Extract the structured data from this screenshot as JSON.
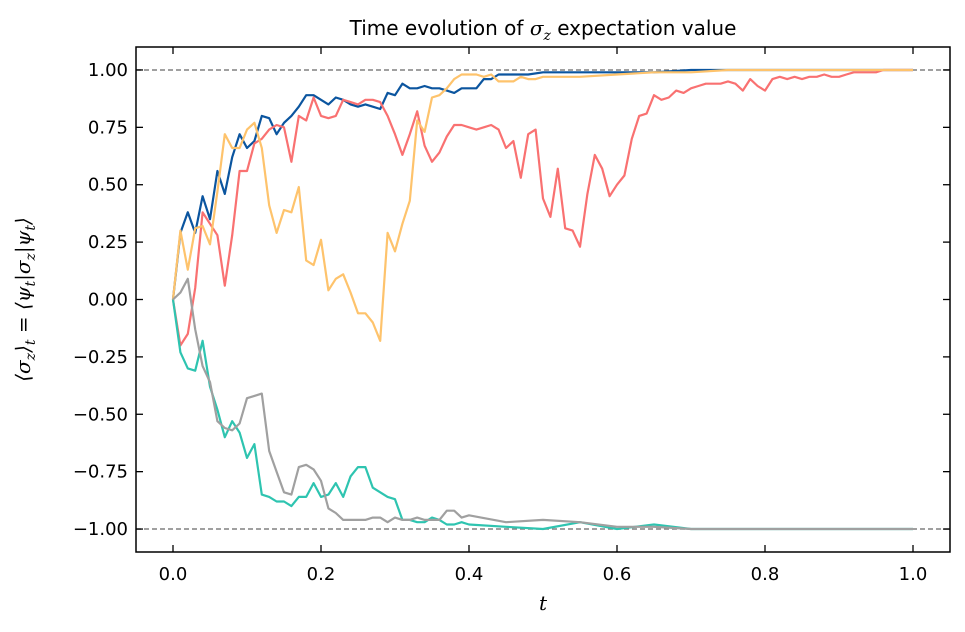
{
  "chart_data": {
    "type": "line",
    "title": "Time evolution of σ_z expectation value",
    "title_parts": [
      "Time evolution of ",
      "σ",
      "z",
      " expectation value"
    ],
    "xlabel": "t",
    "ylabel": "⟨σ_z⟩_t = ⟨ψ_t|σ_z|ψ_t⟩",
    "ylabel_parts": [
      "⟨σ",
      "z",
      "⟩",
      "t",
      " = ⟨ψ",
      "t",
      "|σ",
      "z",
      "|ψ",
      "t",
      "⟩"
    ],
    "xlim": [
      -0.05,
      1.05
    ],
    "ylim": [
      -1.1,
      1.1
    ],
    "xticks": [
      0.0,
      0.2,
      0.4,
      0.6,
      0.8,
      1.0
    ],
    "xtick_labels": [
      "0.0",
      "0.2",
      "0.4",
      "0.6",
      "0.8",
      "1.0"
    ],
    "yticks": [
      -1.0,
      -0.75,
      -0.5,
      -0.25,
      0.0,
      0.25,
      0.5,
      0.75,
      1.0
    ],
    "ytick_labels": [
      "−1.00",
      "−0.75",
      "−0.50",
      "−0.25",
      "0.00",
      "0.25",
      "0.50",
      "0.75",
      "1.00"
    ],
    "reference_lines": [
      1.0,
      -1.0
    ],
    "reference_line_color": "#808080",
    "grid": false,
    "legend": "none",
    "series": [
      {
        "color": "#0b559f",
        "x": [
          0,
          0.01,
          0.02,
          0.03,
          0.04,
          0.05,
          0.06,
          0.07,
          0.08,
          0.09,
          0.1,
          0.11,
          0.12,
          0.13,
          0.14,
          0.15,
          0.16,
          0.17,
          0.18,
          0.19,
          0.2,
          0.21,
          0.22,
          0.23,
          0.24,
          0.25,
          0.26,
          0.27,
          0.28,
          0.29,
          0.3,
          0.31,
          0.32,
          0.33,
          0.34,
          0.35,
          0.36,
          0.37,
          0.38,
          0.39,
          0.4,
          0.41,
          0.42,
          0.43,
          0.44,
          0.45,
          0.46,
          0.47,
          0.48,
          0.5,
          0.55,
          0.6,
          0.65,
          0.7,
          0.75,
          0.8,
          0.85,
          0.9,
          0.95,
          1.0
        ],
        "y": [
          0,
          0.29,
          0.38,
          0.29,
          0.45,
          0.35,
          0.56,
          0.46,
          0.62,
          0.72,
          0.66,
          0.69,
          0.8,
          0.79,
          0.72,
          0.77,
          0.8,
          0.84,
          0.89,
          0.89,
          0.87,
          0.85,
          0.88,
          0.87,
          0.85,
          0.84,
          0.85,
          0.84,
          0.83,
          0.9,
          0.89,
          0.94,
          0.92,
          0.92,
          0.93,
          0.92,
          0.92,
          0.91,
          0.9,
          0.92,
          0.92,
          0.92,
          0.96,
          0.96,
          0.98,
          0.98,
          0.98,
          0.98,
          0.98,
          0.99,
          0.99,
          0.99,
          0.99,
          1.0,
          1.0,
          1.0,
          1.0,
          1.0,
          1.0,
          1.0
        ]
      },
      {
        "color": "#f97171",
        "x": [
          0,
          0.01,
          0.02,
          0.03,
          0.04,
          0.05,
          0.06,
          0.07,
          0.08,
          0.09,
          0.1,
          0.11,
          0.12,
          0.13,
          0.14,
          0.15,
          0.16,
          0.17,
          0.18,
          0.19,
          0.2,
          0.21,
          0.22,
          0.23,
          0.24,
          0.25,
          0.26,
          0.27,
          0.28,
          0.29,
          0.3,
          0.31,
          0.32,
          0.33,
          0.34,
          0.35,
          0.36,
          0.37,
          0.38,
          0.39,
          0.4,
          0.41,
          0.42,
          0.43,
          0.44,
          0.45,
          0.46,
          0.47,
          0.48,
          0.49,
          0.5,
          0.51,
          0.52,
          0.53,
          0.54,
          0.55,
          0.56,
          0.57,
          0.58,
          0.59,
          0.6,
          0.61,
          0.62,
          0.63,
          0.64,
          0.65,
          0.66,
          0.67,
          0.68,
          0.69,
          0.7,
          0.71,
          0.72,
          0.73,
          0.74,
          0.75,
          0.76,
          0.77,
          0.78,
          0.79,
          0.8,
          0.81,
          0.82,
          0.83,
          0.84,
          0.85,
          0.86,
          0.87,
          0.88,
          0.89,
          0.9,
          0.91,
          0.92,
          0.93,
          0.94,
          0.95,
          0.96,
          0.97,
          0.98,
          0.99,
          1.0
        ],
        "y": [
          0,
          -0.2,
          -0.15,
          0.05,
          0.38,
          0.33,
          0.28,
          0.06,
          0.28,
          0.56,
          0.56,
          0.68,
          0.7,
          0.74,
          0.76,
          0.75,
          0.6,
          0.8,
          0.78,
          0.88,
          0.8,
          0.79,
          0.8,
          0.87,
          0.86,
          0.85,
          0.87,
          0.87,
          0.86,
          0.8,
          0.72,
          0.63,
          0.72,
          0.82,
          0.67,
          0.6,
          0.64,
          0.71,
          0.76,
          0.76,
          0.75,
          0.74,
          0.75,
          0.76,
          0.74,
          0.66,
          0.69,
          0.53,
          0.72,
          0.74,
          0.44,
          0.36,
          0.57,
          0.31,
          0.3,
          0.23,
          0.46,
          0.63,
          0.57,
          0.45,
          0.5,
          0.54,
          0.7,
          0.8,
          0.81,
          0.89,
          0.87,
          0.88,
          0.91,
          0.9,
          0.92,
          0.93,
          0.94,
          0.94,
          0.94,
          0.95,
          0.94,
          0.91,
          0.96,
          0.93,
          0.91,
          0.96,
          0.97,
          0.96,
          0.97,
          0.96,
          0.97,
          0.97,
          0.98,
          0.97,
          0.97,
          0.98,
          0.99,
          0.99,
          0.99,
          0.99,
          1.0,
          1.0,
          1.0,
          1.0,
          1.0
        ]
      },
      {
        "color": "#fec36c",
        "x": [
          0,
          0.01,
          0.02,
          0.03,
          0.04,
          0.05,
          0.06,
          0.07,
          0.08,
          0.09,
          0.1,
          0.11,
          0.12,
          0.13,
          0.14,
          0.15,
          0.16,
          0.17,
          0.18,
          0.19,
          0.2,
          0.21,
          0.22,
          0.23,
          0.24,
          0.25,
          0.26,
          0.27,
          0.28,
          0.29,
          0.3,
          0.31,
          0.32,
          0.33,
          0.34,
          0.35,
          0.36,
          0.37,
          0.38,
          0.39,
          0.4,
          0.41,
          0.42,
          0.43,
          0.44,
          0.45,
          0.46,
          0.47,
          0.48,
          0.49,
          0.5,
          0.55,
          0.6,
          0.65,
          0.7,
          0.75,
          0.8,
          0.85,
          0.9,
          0.95,
          1.0
        ],
        "y": [
          0,
          0.3,
          0.13,
          0.31,
          0.32,
          0.24,
          0.47,
          0.72,
          0.66,
          0.66,
          0.74,
          0.77,
          0.66,
          0.41,
          0.29,
          0.39,
          0.38,
          0.49,
          0.17,
          0.15,
          0.26,
          0.04,
          0.09,
          0.11,
          0.03,
          -0.06,
          -0.06,
          -0.1,
          -0.18,
          0.29,
          0.21,
          0.33,
          0.43,
          0.78,
          0.73,
          0.88,
          0.89,
          0.92,
          0.96,
          0.98,
          0.98,
          0.98,
          0.97,
          0.98,
          0.95,
          0.95,
          0.95,
          0.97,
          0.96,
          0.96,
          0.97,
          0.97,
          0.98,
          0.99,
          0.99,
          1.0,
          1.0,
          1.0,
          1.0,
          1.0,
          1.0
        ]
      },
      {
        "color": "#2ec4b0",
        "x": [
          0,
          0.01,
          0.02,
          0.03,
          0.04,
          0.05,
          0.06,
          0.07,
          0.08,
          0.09,
          0.1,
          0.11,
          0.12,
          0.13,
          0.14,
          0.15,
          0.16,
          0.17,
          0.18,
          0.19,
          0.2,
          0.21,
          0.22,
          0.23,
          0.24,
          0.25,
          0.26,
          0.27,
          0.28,
          0.29,
          0.3,
          0.31,
          0.32,
          0.33,
          0.34,
          0.35,
          0.36,
          0.37,
          0.38,
          0.39,
          0.4,
          0.45,
          0.5,
          0.55,
          0.6,
          0.65,
          0.7,
          0.75,
          0.8,
          0.85,
          0.9,
          0.95,
          1.0
        ],
        "y": [
          0,
          -0.23,
          -0.3,
          -0.31,
          -0.18,
          -0.38,
          -0.48,
          -0.6,
          -0.53,
          -0.58,
          -0.69,
          -0.63,
          -0.85,
          -0.86,
          -0.88,
          -0.88,
          -0.9,
          -0.86,
          -0.86,
          -0.8,
          -0.86,
          -0.85,
          -0.8,
          -0.86,
          -0.77,
          -0.73,
          -0.73,
          -0.82,
          -0.84,
          -0.86,
          -0.87,
          -0.96,
          -0.96,
          -0.97,
          -0.97,
          -0.95,
          -0.96,
          -0.98,
          -0.98,
          -0.97,
          -0.98,
          -0.99,
          -1.0,
          -0.97,
          -1.0,
          -0.98,
          -1.0,
          -1.0,
          -1.0,
          -1.0,
          -1.0,
          -1.0,
          -1.0
        ]
      },
      {
        "color": "#a0a0a0",
        "x": [
          0,
          0.01,
          0.02,
          0.03,
          0.04,
          0.05,
          0.06,
          0.07,
          0.08,
          0.09,
          0.1,
          0.11,
          0.12,
          0.13,
          0.14,
          0.15,
          0.16,
          0.17,
          0.18,
          0.19,
          0.2,
          0.21,
          0.22,
          0.23,
          0.24,
          0.25,
          0.26,
          0.27,
          0.28,
          0.29,
          0.3,
          0.31,
          0.32,
          0.33,
          0.34,
          0.35,
          0.36,
          0.37,
          0.38,
          0.39,
          0.4,
          0.45,
          0.5,
          0.55,
          0.6,
          0.65,
          0.7,
          0.75,
          0.8,
          0.85,
          0.9,
          0.95,
          1.0
        ],
        "y": [
          0,
          0.03,
          0.09,
          -0.13,
          -0.29,
          -0.36,
          -0.53,
          -0.56,
          -0.57,
          -0.54,
          -0.43,
          -0.42,
          -0.41,
          -0.66,
          -0.75,
          -0.84,
          -0.85,
          -0.73,
          -0.72,
          -0.74,
          -0.79,
          -0.91,
          -0.93,
          -0.96,
          -0.96,
          -0.96,
          -0.96,
          -0.95,
          -0.95,
          -0.97,
          -0.95,
          -0.96,
          -0.96,
          -0.95,
          -0.96,
          -0.96,
          -0.96,
          -0.92,
          -0.92,
          -0.95,
          -0.94,
          -0.97,
          -0.96,
          -0.97,
          -0.99,
          -0.99,
          -1.0,
          -1.0,
          -1.0,
          -1.0,
          -1.0,
          -1.0,
          -1.0
        ]
      }
    ]
  }
}
